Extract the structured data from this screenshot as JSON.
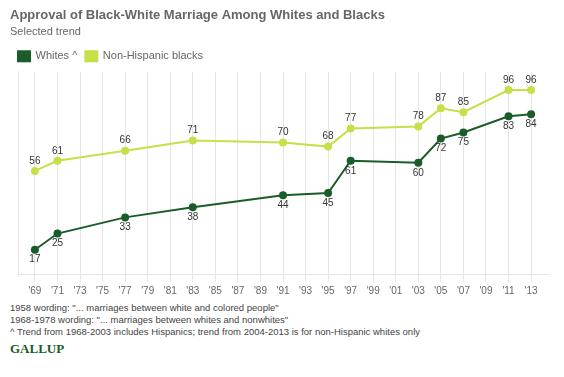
{
  "chart_data": {
    "type": "line",
    "title": "Approval of Black-White Marriage Among Whites and Blacks",
    "subtitle": "Selected trend",
    "x": [
      1969,
      1971,
      1977,
      1983,
      1991,
      1995,
      1997,
      2003,
      2005,
      2007,
      2011,
      2013
    ],
    "series": [
      {
        "name": "Whites ^",
        "color": "#1a5c2a",
        "values": [
          17,
          25,
          33,
          38,
          44,
          45,
          61,
          60,
          72,
          75,
          83,
          84
        ]
      },
      {
        "name": "Non-Hispanic blacks",
        "color": "#c5e049",
        "values": [
          56,
          61,
          66,
          71,
          70,
          68,
          77,
          78,
          87,
          85,
          96,
          96
        ]
      }
    ],
    "xlim": [
      1967.5,
      2014.5
    ],
    "xticks": [
      {
        "value": 1969,
        "label": "'69"
      },
      {
        "value": 1971,
        "label": "'71"
      },
      {
        "value": 1973,
        "label": "'73"
      },
      {
        "value": 1975,
        "label": "'75"
      },
      {
        "value": 1977,
        "label": "'77"
      },
      {
        "value": 1979,
        "label": "'79"
      },
      {
        "value": 1981,
        "label": "'81"
      },
      {
        "value": 1983,
        "label": "'83"
      },
      {
        "value": 1985,
        "label": "'85"
      },
      {
        "value": 1987,
        "label": "'87"
      },
      {
        "value": 1989,
        "label": "'89"
      },
      {
        "value": 1991,
        "label": "'91"
      },
      {
        "value": 1993,
        "label": "'93"
      },
      {
        "value": 1995,
        "label": "'95"
      },
      {
        "value": 1997,
        "label": "'97"
      },
      {
        "value": 1999,
        "label": "'99"
      },
      {
        "value": 2001,
        "label": "'01"
      },
      {
        "value": 2003,
        "label": "'03"
      },
      {
        "value": 2005,
        "label": "'05"
      },
      {
        "value": 2007,
        "label": "'07"
      },
      {
        "value": 2009,
        "label": "'09"
      },
      {
        "value": 2011,
        "label": "'11"
      },
      {
        "value": 2013,
        "label": "'13"
      }
    ],
    "ylim": [
      5,
      105
    ],
    "yticks": [],
    "tick_labels": "x",
    "grid": true,
    "legend": "upper left",
    "data_labels": true,
    "marker": "circle",
    "annotations": [
      "1958 wording: \"... marriages between white and colored people\"",
      "1968-1978 wording: \"... marriages between whites and nonwhites\"",
      "^ Trend from 1968-2003 includes Hispanics; trend from 2004-2013 is for non-Hispanic whites only",
      "GALLUP"
    ]
  }
}
